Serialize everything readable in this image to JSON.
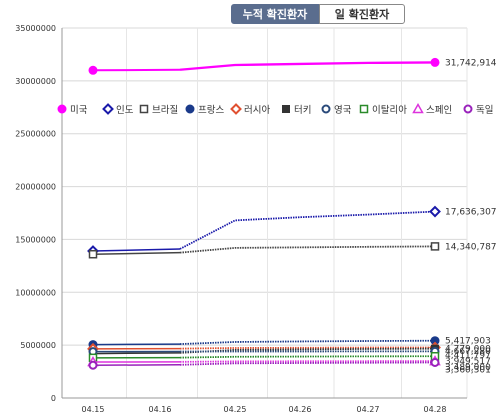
{
  "tabs": {
    "cumulative": "누적 확진환자",
    "daily": "일 확진환자"
  },
  "chart_data": {
    "type": "line",
    "y_ticks": [
      "35000000",
      "30000000",
      "25000000",
      "20000000",
      "15000000",
      "10000000",
      "5000000",
      "0"
    ],
    "ylim": [
      0,
      35000000
    ],
    "categories": [
      "04.15",
      "04.16",
      "04.25",
      "04.26",
      "04.27",
      "04.28"
    ],
    "x_ticks": [
      "04.15",
      "04.16",
      "04.25",
      "04.26",
      "04.27",
      "04.28"
    ],
    "grid": true,
    "legend_position": "top",
    "series": [
      {
        "name": "미국",
        "color": "#ff00ff",
        "values": [
          31000000,
          31050000,
          31500000,
          31600000,
          31700000,
          31742914
        ],
        "end_label": "31,742,914",
        "marker": "filled-circle",
        "width": 2
      },
      {
        "name": "인도",
        "color": "#1a1aaa",
        "values": [
          13900000,
          14100000,
          16800000,
          17100000,
          17350000,
          17636307
        ],
        "end_label": "17,636,307",
        "marker": "diamond",
        "width": 1.5
      },
      {
        "name": "브라질",
        "color": "#444444",
        "values": [
          13600000,
          13750000,
          14200000,
          14250000,
          14300000,
          14340787
        ],
        "end_label": "14,340,787",
        "marker": "square",
        "width": 1.5
      },
      {
        "name": "프랑스",
        "color": "#1a3a8a",
        "values": [
          5050000,
          5100000,
          5300000,
          5350000,
          5390000,
          5417903
        ],
        "end_label": "5,417,903",
        "marker": "filled-circle",
        "width": 1.5
      },
      {
        "name": "러시아",
        "color": "#e05030",
        "values": [
          4650000,
          4670000,
          4730000,
          4750000,
          4770000,
          4779000
        ],
        "end_label": "4,779,000",
        "marker": "diamond",
        "width": 1.5
      },
      {
        "name": "터키",
        "color": "#333333",
        "values": [
          4200000,
          4270000,
          4550000,
          4600000,
          4640000,
          4667280
        ],
        "end_label": "4,667,280",
        "marker": "filled-square",
        "width": 1.5
      },
      {
        "name": "영국",
        "color": "#2a4a7a",
        "values": [
          4390000,
          4395000,
          4400000,
          4405000,
          4410000,
          4411797
        ],
        "end_label": "4,411,797",
        "marker": "circle",
        "width": 1.5
      },
      {
        "name": "이탈리아",
        "color": "#2a8a2a",
        "values": [
          3800000,
          3820000,
          3900000,
          3920000,
          3940000,
          3949517
        ],
        "end_label": "3,949,517",
        "marker": "square",
        "width": 1.5
      },
      {
        "name": "스페인",
        "color": "#dd33dd",
        "values": [
          3400000,
          3420000,
          3460000,
          3470000,
          3480000,
          3489000
        ],
        "end_label": "3,489,000",
        "marker": "triangle",
        "width": 1.5
      },
      {
        "name": "독일",
        "color": "#9922bb",
        "values": [
          3100000,
          3140000,
          3280000,
          3310000,
          3340000,
          3360301
        ],
        "end_label": "3,360,301",
        "marker": "circle",
        "width": 1.5
      }
    ]
  }
}
